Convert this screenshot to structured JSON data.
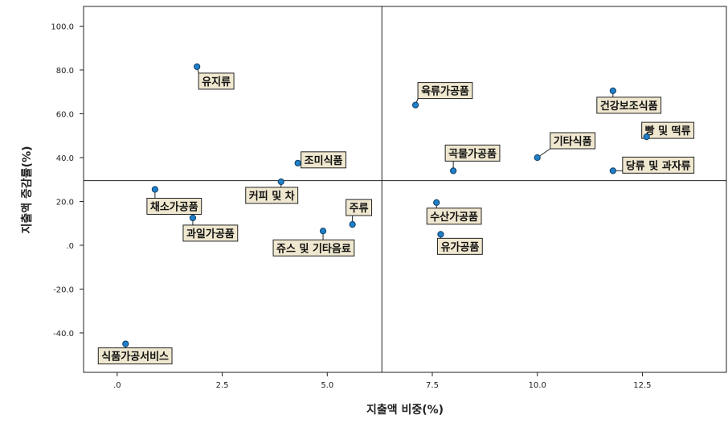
{
  "chart_data": {
    "type": "scatter",
    "xlabel": "지출액 비중(%)",
    "ylabel": "지출액 증감률(%)",
    "xlim": [
      -0.8,
      14.5
    ],
    "ylim": [
      -58,
      109
    ],
    "x_ticks": [
      0,
      2.5,
      5.0,
      7.5,
      10.0,
      12.5
    ],
    "x_tick_labels": [
      ".0",
      "2.5",
      "5.0",
      "7.5",
      "10.0",
      "12.5"
    ],
    "y_ticks": [
      100,
      80,
      60,
      40,
      20,
      0,
      -20,
      -40
    ],
    "y_tick_labels": [
      "100.0",
      "80.0",
      "60.0",
      "40.0",
      "20.0",
      ".0",
      "-20.0",
      "-40.0"
    ],
    "reference_lines": {
      "x": 6.3,
      "y": 29.5
    },
    "colors": {
      "point": "#1f7fc8",
      "label_box": "#efe7cf"
    },
    "points": [
      {
        "label": "유지류",
        "x": 1.9,
        "y": 81.5
      },
      {
        "label": "조미식품",
        "x": 4.3,
        "y": 37.5
      },
      {
        "label": "커피 및 차",
        "x": 3.9,
        "y": 29.0
      },
      {
        "label": "채소가공품",
        "x": 0.9,
        "y": 25.5
      },
      {
        "label": "과일가공품",
        "x": 1.8,
        "y": 12.5
      },
      {
        "label": "주류",
        "x": 5.6,
        "y": 9.5
      },
      {
        "label": "쥬스 및 기타음료",
        "x": 4.9,
        "y": 6.5
      },
      {
        "label": "식품가공서비스",
        "x": 0.2,
        "y": -45.0
      },
      {
        "label": "육류가공품",
        "x": 7.1,
        "y": 64.0
      },
      {
        "label": "건강보조식품",
        "x": 11.8,
        "y": 70.5
      },
      {
        "label": "빵 및 떡류",
        "x": 12.6,
        "y": 49.5
      },
      {
        "label": "기타식품",
        "x": 10.0,
        "y": 40.0
      },
      {
        "label": "곡물가공품",
        "x": 8.0,
        "y": 34.0
      },
      {
        "label": "당류 및 과자류",
        "x": 11.8,
        "y": 34.0
      },
      {
        "label": "수산가공품",
        "x": 7.6,
        "y": 19.5
      },
      {
        "label": "유가공품",
        "x": 7.7,
        "y": 5.0
      }
    ]
  }
}
